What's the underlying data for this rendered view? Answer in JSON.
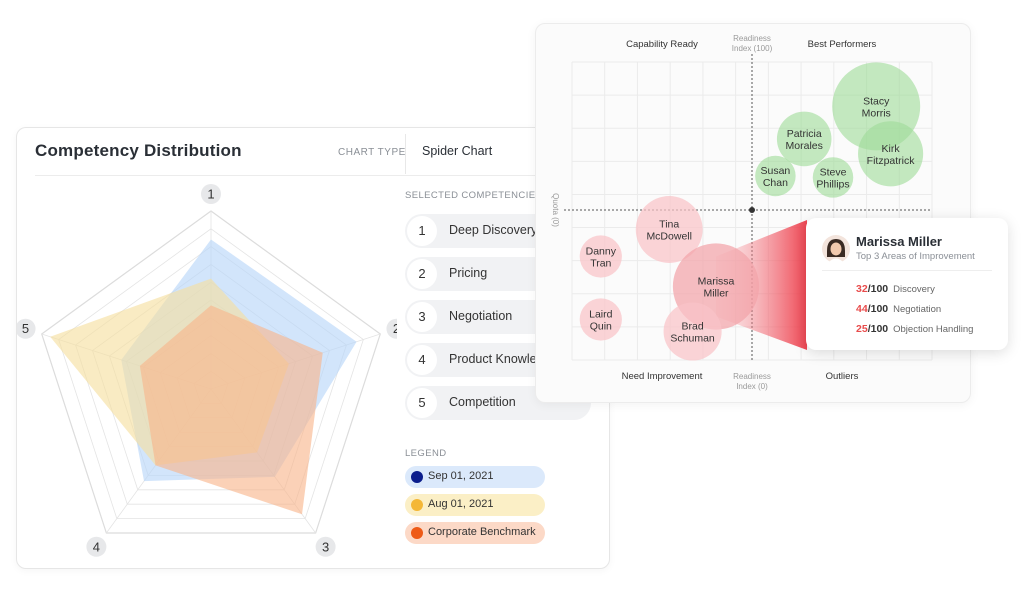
{
  "main": {
    "title": "Competency Distribution",
    "chart_type_label": "CHART TYPE",
    "chart_type_value": "Spider Chart",
    "selected_label": "SELECTED COMPETENCIES",
    "competencies": [
      {
        "num": "1",
        "label": "Deep Discovery"
      },
      {
        "num": "2",
        "label": "Pricing"
      },
      {
        "num": "3",
        "label": "Negotiation"
      },
      {
        "num": "4",
        "label": "Product Knowledge"
      },
      {
        "num": "5",
        "label": "Competition"
      }
    ],
    "legend_label": "LEGEND",
    "legend": [
      {
        "label": "Sep 01, 2021",
        "dot": "#0b1d8c",
        "bg": "#dbe9fb"
      },
      {
        "label": "Aug 01, 2021",
        "dot": "#f4b736",
        "bg": "#fbefc6"
      },
      {
        "label": "Corporate Benchmark",
        "dot": "#ee5a16",
        "bg": "#fcd9c7"
      }
    ]
  },
  "chart_data": [
    {
      "type": "radar",
      "axes": [
        "1",
        "2",
        "3",
        "4",
        "5"
      ],
      "scale_max": 10,
      "series": [
        {
          "name": "Sep 01, 2021",
          "values": [
            8.4,
            8.6,
            6.1,
            6.4,
            5.3
          ],
          "color": "#b6d5f8"
        },
        {
          "name": "Aug 01, 2021",
          "values": [
            6.2,
            4.6,
            4.4,
            5.3,
            9.5
          ],
          "color": "#f5df9e"
        },
        {
          "name": "Corporate Benchmark",
          "values": [
            4.7,
            6.6,
            8.7,
            5.3,
            4.2
          ],
          "color": "#f8b48a"
        }
      ]
    },
    {
      "type": "scatter",
      "quadrants": {
        "top_left": "Capability Ready",
        "top_right": "Best Performers",
        "bottom_left": "Need Improvement",
        "bottom_right": "Outliers"
      },
      "axis_top": [
        "Readiness",
        "Index (100)"
      ],
      "axis_bottom": [
        "Readiness",
        "Index (0)"
      ],
      "axis_left": "Quota (0)",
      "xlim": [
        -1,
        1
      ],
      "ylim": [
        -1,
        1
      ],
      "bubbles": [
        {
          "name": [
            "Stacy",
            "Morris"
          ],
          "x": 0.69,
          "y": 0.7,
          "r": 1.0,
          "group": "good"
        },
        {
          "name": [
            "Kirk",
            "Fitzpatrick"
          ],
          "x": 0.77,
          "y": 0.38,
          "r": 0.74,
          "group": "good"
        },
        {
          "name": [
            "Patricia",
            "Morales"
          ],
          "x": 0.29,
          "y": 0.48,
          "r": 0.62,
          "group": "good"
        },
        {
          "name": [
            "Steve",
            "Phillips"
          ],
          "x": 0.45,
          "y": 0.22,
          "r": 0.46,
          "group": "good"
        },
        {
          "name": [
            "Susan",
            "Chan"
          ],
          "x": 0.13,
          "y": 0.23,
          "r": 0.46,
          "group": "good"
        },
        {
          "name": [
            "Tina",
            "McDowell"
          ],
          "x": -0.46,
          "y": -0.13,
          "r": 0.76,
          "group": "bad"
        },
        {
          "name": [
            "Marissa",
            "Miller"
          ],
          "x": -0.2,
          "y": -0.51,
          "r": 0.98,
          "group": "bad"
        },
        {
          "name": [
            "Danny",
            "Tran"
          ],
          "x": -0.84,
          "y": -0.31,
          "r": 0.48,
          "group": "bad"
        },
        {
          "name": [
            "Brad",
            "Schuman"
          ],
          "x": -0.33,
          "y": -0.81,
          "r": 0.66,
          "group": "bad"
        },
        {
          "name": [
            "Laird",
            "Quin"
          ],
          "x": -0.84,
          "y": -0.73,
          "r": 0.48,
          "group": "bad"
        }
      ]
    }
  ],
  "tooltip": {
    "name": "Marissa Miller",
    "subtitle": "Top 3 Areas of Improvement",
    "max": "/100",
    "rows": [
      {
        "score": "32",
        "area": "Discovery"
      },
      {
        "score": "44",
        "area": "Negotiation"
      },
      {
        "score": "25",
        "area": "Objection Handling"
      }
    ]
  },
  "colors": {
    "good_bubble": "#9fdb9a",
    "bad_bubble": "#f9c4c8",
    "highlight_bubble": "#f3a3a9",
    "accent_red": "#e84c4c"
  }
}
